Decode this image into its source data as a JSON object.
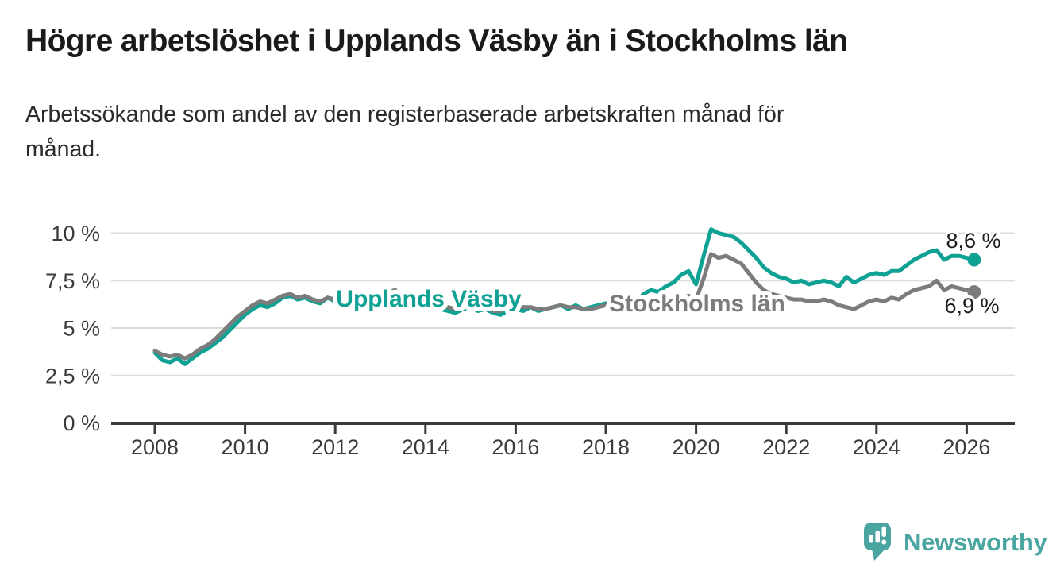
{
  "title": "Högre arbetslöshet i Upplands Väsby än i Stockholms län",
  "subtitle": "Arbetssökande som andel av den registerbaserade arbetskraften månad för månad.",
  "branding": {
    "logo_text": "Newsworthy",
    "logo_icon": "newsworthy-speech-bubble-bar-chart-icon",
    "accent_color": "#4aa5a1"
  },
  "colors": {
    "background": "#ffffff",
    "title_text": "#1a1a1a",
    "body_text": "#2b2b2b",
    "axis": "#3a3a3a",
    "grid": "#dcdcdc"
  },
  "chart_data": {
    "type": "line",
    "title": "Högre arbetslöshet i Upplands Väsby än i Stockholms län",
    "subtitle": "Arbetssökande som andel av den registerbaserade arbetskraften månad för månad.",
    "unit": "%",
    "grid": true,
    "x_start_year": 2008,
    "x_step_years": 0.1666667,
    "xlim": [
      2007.0,
      2027.05
    ],
    "ylim": [
      0,
      10.6
    ],
    "x_ticks": [
      2008,
      2010,
      2012,
      2014,
      2016,
      2018,
      2020,
      2022,
      2024,
      2026
    ],
    "x_tick_labels": [
      "2008",
      "2010",
      "2012",
      "2014",
      "2016",
      "2018",
      "2020",
      "2022",
      "2024",
      "2026"
    ],
    "y_ticks": [
      0,
      2.5,
      5,
      7.5,
      10
    ],
    "y_tick_labels": [
      "0 %",
      "2,5 %",
      "5 %",
      "7,5 %",
      "10 %"
    ],
    "legend_position": "inline-labels-on-lines",
    "series": [
      {
        "name": "Upplands Väsby",
        "slug": "upplands-vasby",
        "color": "#0fa294",
        "end_value": 8.6,
        "end_label": "8,6 %",
        "values": [
          3.7,
          3.3,
          3.2,
          3.4,
          3.1,
          3.4,
          3.7,
          3.9,
          4.2,
          4.5,
          4.9,
          5.3,
          5.7,
          6.0,
          6.2,
          6.1,
          6.3,
          6.6,
          6.7,
          6.5,
          6.6,
          6.4,
          6.3,
          6.6,
          6.4,
          6.2,
          6.3,
          6.1,
          6.2,
          6.4,
          6.6,
          6.4,
          6.3,
          6.1,
          6.0,
          6.2,
          6.3,
          6.1,
          6.0,
          5.9,
          5.8,
          6.0,
          6.1,
          5.9,
          6.0,
          5.8,
          5.7,
          5.9,
          6.0,
          5.9,
          6.1,
          5.9,
          6.0,
          6.1,
          6.2,
          6.0,
          6.2,
          6.0,
          6.1,
          6.2,
          6.3,
          6.1,
          6.2,
          6.1,
          6.3,
          6.8,
          7.0,
          6.9,
          7.2,
          7.4,
          7.8,
          8.0,
          7.3,
          8.8,
          10.2,
          10.0,
          9.9,
          9.8,
          9.5,
          9.1,
          8.7,
          8.2,
          7.9,
          7.7,
          7.6,
          7.4,
          7.5,
          7.3,
          7.4,
          7.5,
          7.4,
          7.2,
          7.7,
          7.4,
          7.6,
          7.8,
          7.9,
          7.8,
          8.0,
          8.0,
          8.3,
          8.6,
          8.8,
          9.0,
          9.1,
          8.6,
          8.8,
          8.8,
          8.7,
          8.6
        ]
      },
      {
        "name": "Stockholms län",
        "slug": "stockholms-lan",
        "color": "#7c7c7c",
        "end_value": 6.9,
        "end_label": "6,9 %",
        "values": [
          3.8,
          3.6,
          3.5,
          3.6,
          3.4,
          3.6,
          3.9,
          4.1,
          4.4,
          4.8,
          5.2,
          5.6,
          5.9,
          6.2,
          6.4,
          6.3,
          6.5,
          6.7,
          6.8,
          6.6,
          6.7,
          6.5,
          6.4,
          6.6,
          6.5,
          6.3,
          6.4,
          6.2,
          6.3,
          6.5,
          6.8,
          6.9,
          7.0,
          6.5,
          6.3,
          6.4,
          6.5,
          6.3,
          6.2,
          6.1,
          6.0,
          6.2,
          6.3,
          6.1,
          6.1,
          5.9,
          5.9,
          6.1,
          6.2,
          6.1,
          6.1,
          6.0,
          6.0,
          6.1,
          6.2,
          6.1,
          6.1,
          6.0,
          6.0,
          6.1,
          6.2,
          6.1,
          6.1,
          6.0,
          6.1,
          6.2,
          6.3,
          6.3,
          6.4,
          6.4,
          6.5,
          6.7,
          6.5,
          7.6,
          8.9,
          8.7,
          8.8,
          8.6,
          8.4,
          7.9,
          7.4,
          7.0,
          6.8,
          6.7,
          6.6,
          6.5,
          6.5,
          6.4,
          6.4,
          6.5,
          6.4,
          6.2,
          6.1,
          6.0,
          6.2,
          6.4,
          6.5,
          6.4,
          6.6,
          6.5,
          6.8,
          7.0,
          7.1,
          7.2,
          7.5,
          7.0,
          7.2,
          7.1,
          7.0,
          6.9
        ]
      }
    ]
  }
}
